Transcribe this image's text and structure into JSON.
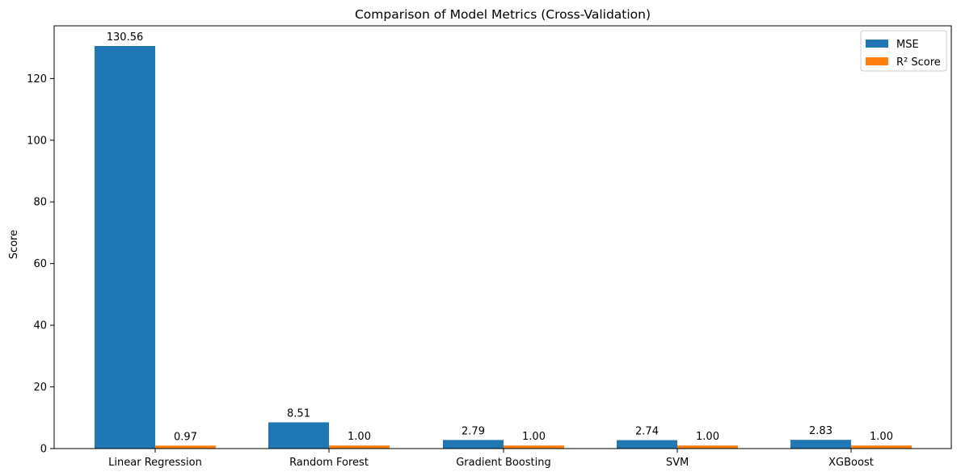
{
  "chart_data": {
    "type": "bar",
    "title": "Comparison of Model Metrics (Cross-Validation)",
    "xlabel": "",
    "ylabel": "Score",
    "categories": [
      "Linear Regression",
      "Random Forest",
      "Gradient Boosting",
      "SVM",
      "XGBoost"
    ],
    "series": [
      {
        "name": "MSE",
        "color": "#1f77b4",
        "values": [
          130.56,
          8.51,
          2.79,
          2.74,
          2.83
        ],
        "labels": [
          "130.56",
          "8.51",
          "2.79",
          "2.74",
          "2.83"
        ]
      },
      {
        "name": "R² Score",
        "color": "#ff7f0e",
        "values": [
          0.97,
          1.0,
          1.0,
          1.0,
          1.0
        ],
        "labels": [
          "0.97",
          "1.00",
          "1.00",
          "1.00",
          "1.00"
        ]
      }
    ],
    "ylim": [
      0,
      137.1
    ],
    "yticks": [
      0,
      20,
      40,
      60,
      80,
      100,
      120
    ],
    "grid": false,
    "legend_position": "top-right"
  }
}
